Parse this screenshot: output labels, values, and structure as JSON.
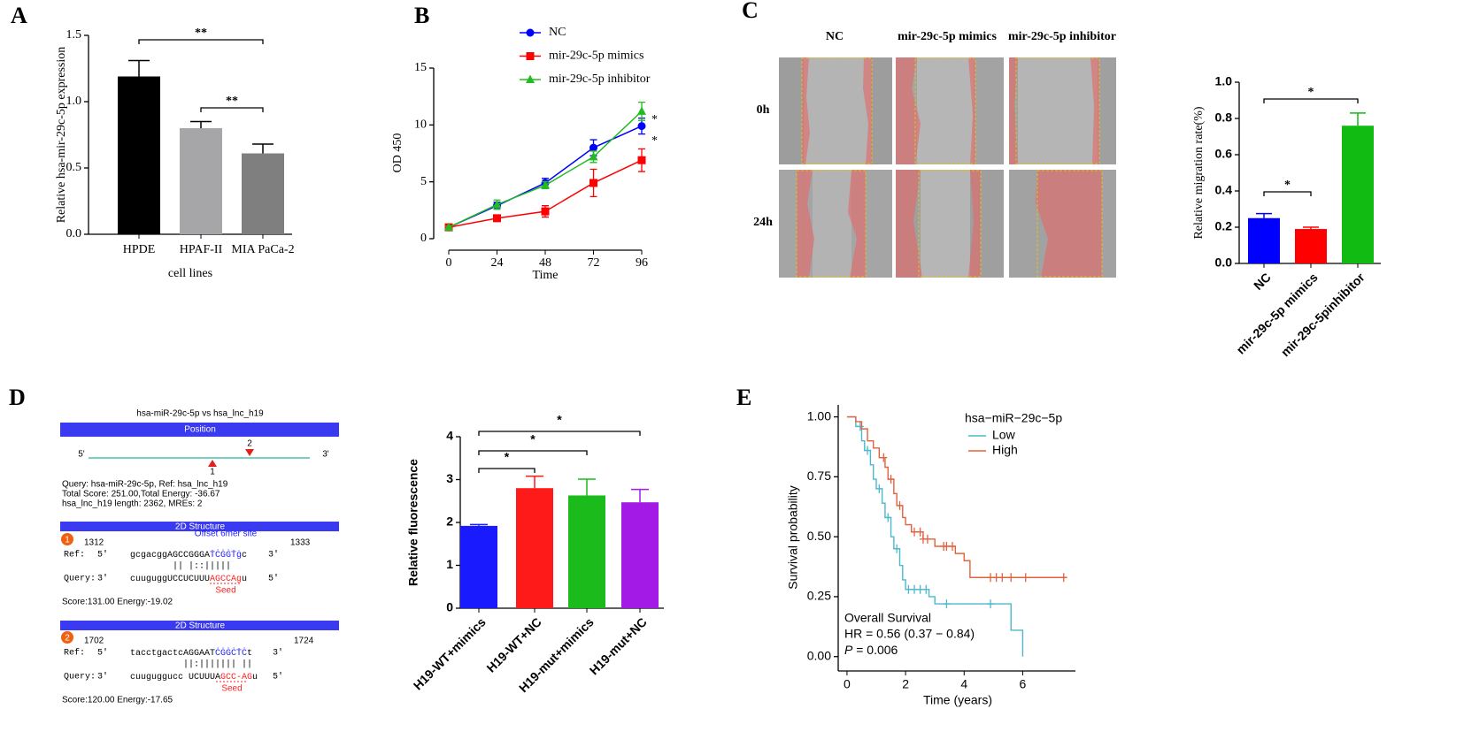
{
  "panels": [
    "A",
    "B",
    "C",
    "D",
    "E"
  ],
  "chart_data": [
    {
      "type": "bar",
      "y_label": "Relative hsa-mir-29c-5p expression",
      "x_label": "cell lines",
      "categories": [
        "HPDE",
        "HPAF-II",
        "MIA PaCa-2"
      ],
      "values": [
        1.19,
        0.8,
        0.61
      ],
      "errors": [
        0.12,
        0.05,
        0.07
      ],
      "colors": [
        "#000000",
        "#a6a6a8",
        "#7f7f7f"
      ],
      "ylim": [
        0,
        1.5
      ],
      "yticks": [
        {
          "value": 0,
          "label": "0.0"
        },
        0.5,
        {
          "value": 1,
          "label": "1.0"
        },
        1.5
      ],
      "annotations": [
        "**",
        "**"
      ]
    },
    {
      "type": "line",
      "x_label": "Time",
      "y_label": "OD 450",
      "x": [
        0,
        24,
        48,
        72,
        96
      ],
      "xlim": [
        0,
        96
      ],
      "xticks": [
        0,
        24,
        48,
        72,
        96
      ],
      "ylim": [
        0,
        15
      ],
      "yticks": [
        0,
        5,
        10,
        15
      ],
      "series": [
        {
          "name": "NC",
          "color": "#0000ff",
          "marker": "circle",
          "values": [
            1,
            2.9,
            4.9,
            8.0,
            9.9
          ],
          "errors": [
            0.1,
            0.3,
            0.4,
            0.7,
            0.7
          ]
        },
        {
          "name": "mir-29c-5p mimics",
          "color": "#ff0000",
          "marker": "square",
          "values": [
            1,
            1.8,
            2.4,
            4.9,
            6.9
          ],
          "errors": [
            0.1,
            0.1,
            0.5,
            1.2,
            1.0
          ]
        },
        {
          "name": "mir-29c-5p inhibitor",
          "color": "#22bb22",
          "marker": "triangle",
          "values": [
            1,
            3.0,
            4.7,
            7.2,
            11.2
          ],
          "errors": [
            0.1,
            0.4,
            0.3,
            0.5,
            0.8
          ]
        }
      ],
      "annotations": [
        "*",
        "*"
      ]
    },
    {
      "type": "bar",
      "y_label": "Relative migration rate(%)",
      "categories": [
        "NC",
        "mir-29c-5p mimics",
        "mir-29c-5pinhibitor"
      ],
      "values": [
        0.25,
        0.19,
        0.76
      ],
      "errors": [
        0.025,
        0.01,
        0.07
      ],
      "colors": [
        "#0000ff",
        "#ff0000",
        "#11bb11"
      ],
      "ylim": [
        0,
        1
      ],
      "yticks": [
        {
          "value": 0,
          "label": "0.0"
        },
        0.2,
        0.4,
        0.6,
        0.8,
        {
          "value": 1,
          "label": "1.0"
        }
      ],
      "annotations": [
        "*",
        "*"
      ]
    },
    {
      "type": "bar",
      "y_label": "Relative fluorescence",
      "categories": [
        "H19-WT+mimics",
        "H19-WT+NC",
        "H19-mut+mimics",
        "H19-mut+NC"
      ],
      "values": [
        1.92,
        2.8,
        2.63,
        2.47
      ],
      "errors": [
        0.03,
        0.28,
        0.38,
        0.3
      ],
      "colors": [
        "#1a1aff",
        "#ff1a1a",
        "#1abb1a",
        "#a31ae6"
      ],
      "ylim": [
        0,
        4
      ],
      "yticks": [
        0,
        1,
        2,
        3,
        4
      ],
      "annotations": [
        "*",
        "*",
        "*"
      ]
    },
    {
      "type": "survival",
      "x_label": "Time (years)",
      "y_label": "Survival probability",
      "legend_title": "hsa−miR−29c−5p",
      "xlim": [
        -0.3,
        7.8
      ],
      "xticks": [
        0,
        2,
        4,
        6
      ],
      "ylim": [
        -0.06,
        1.05
      ],
      "yticks": [
        {
          "value": 0,
          "label": "0.00"
        },
        {
          "value": 0.25,
          "label": "0.25"
        },
        {
          "value": 0.5,
          "label": "0.50"
        },
        {
          "value": 0.75,
          "label": "0.75"
        },
        {
          "value": 1,
          "label": "1.00"
        }
      ],
      "series": [
        {
          "name": "Low",
          "color": "#4db8cc",
          "x": [
            0,
            0.3,
            0.5,
            0.6,
            0.8,
            0.9,
            1.0,
            1.2,
            1.3,
            1.5,
            1.6,
            1.8,
            1.9,
            2.0,
            2.8,
            3.0,
            5.6,
            6.0
          ],
          "values": [
            1,
            0.96,
            0.9,
            0.86,
            0.8,
            0.74,
            0.7,
            0.64,
            0.58,
            0.5,
            0.45,
            0.38,
            0.32,
            0.28,
            0.25,
            0.22,
            0.11,
            0
          ],
          "censored": {
            "x": [
              0.45,
              0.7,
              1.1,
              1.4,
              1.7,
              2.1,
              2.3,
              2.5,
              2.7,
              3.4,
              4.9
            ],
            "values": [
              0.96,
              0.86,
              0.7,
              0.58,
              0.45,
              0.28,
              0.28,
              0.28,
              0.28,
              0.22,
              0.22
            ]
          }
        },
        {
          "name": "High",
          "color": "#e5603f",
          "x": [
            0,
            0.3,
            0.5,
            0.7,
            0.9,
            1.1,
            1.3,
            1.4,
            1.6,
            1.7,
            1.9,
            2.0,
            2.2,
            2.6,
            3.0,
            3.7,
            4.0,
            4.2,
            7.5
          ],
          "values": [
            1,
            0.98,
            0.95,
            0.9,
            0.87,
            0.83,
            0.79,
            0.74,
            0.68,
            0.63,
            0.58,
            0.55,
            0.52,
            0.49,
            0.46,
            0.43,
            0.4,
            0.33,
            0.33
          ],
          "censored": {
            "x": [
              1.25,
              1.5,
              1.8,
              2.3,
              2.5,
              2.6,
              2.75,
              3.3,
              3.4,
              3.6,
              4.9,
              5.1,
              5.3,
              5.6,
              6.1,
              7.4
            ],
            "values": [
              0.83,
              0.74,
              0.63,
              0.52,
              0.52,
              0.49,
              0.49,
              0.46,
              0.46,
              0.46,
              0.33,
              0.33,
              0.33,
              0.33,
              0.33,
              0.33
            ]
          }
        }
      ],
      "annotations": {
        "title": "Overall Survival",
        "hr": "HR = 0.56 (0.37 − 0.84)",
        "p_symbol": "P",
        "p_value": " = 0.006"
      }
    }
  ],
  "wound_assay": {
    "columns": [
      "NC",
      "mir-29c-5p mimics",
      "mir-29c-5p inhibitor"
    ],
    "rows": [
      "0h",
      "24h"
    ]
  },
  "binding_diagram": {
    "title": "hsa-miR-29c-5p vs hsa_lnc_h19",
    "position_header": "Position",
    "five_prime": "5'",
    "three_prime": "3'",
    "sites": [
      "1",
      "2"
    ],
    "query_info": [
      "Query: hsa-miR-29c-5p, Ref: hsa_lnc_h19",
      "Total Score: 251.00,Total Energy: -36.67",
      "hsa_lnc_h19 length: 2362, MREs: 2"
    ],
    "structures": [
      {
        "header": "2D Structure",
        "number": "1",
        "start": "1312",
        "end": "1333",
        "site_type": "Offset 6mer site",
        "ref_label": "Ref:",
        "ref_end5": "5'",
        "ref_seq": "gcgacggAGCCGGGA",
        "ref_site": "ṪĊĠĠṪġ",
        "ref_tail": "c",
        "ref_end3": "3'",
        "pairing": "||  |::|||||",
        "query_label": "Query:",
        "query_end3": "3'",
        "query_seq": "cuuguggUCCUCUUU",
        "query_seed": "AGCCAg",
        "query_tail": "u",
        "query_end5": "5'",
        "seed": "Seed",
        "score": "Score:131.00 Energy:-19.02"
      },
      {
        "header": "2D Structure",
        "number": "2",
        "start": "1702",
        "end": "1724",
        "ref_label": "Ref:",
        "ref_end5": "5'",
        "ref_seq": "tacctgactcAGGAAT",
        "ref_site": "ĊĠĠĊṪĊ",
        "ref_tail": "t",
        "ref_end3": "3'",
        "pairing": "||:||||||| ||",
        "query_label": "Query:",
        "query_end3": "3'",
        "query_seq": "cuuguggucc UCUUUA",
        "query_seed": "GCC-AG",
        "query_tail": "u",
        "query_end5": "5'",
        "seed": "Seed",
        "score": "Score:120.00 Energy:-17.65"
      }
    ]
  }
}
